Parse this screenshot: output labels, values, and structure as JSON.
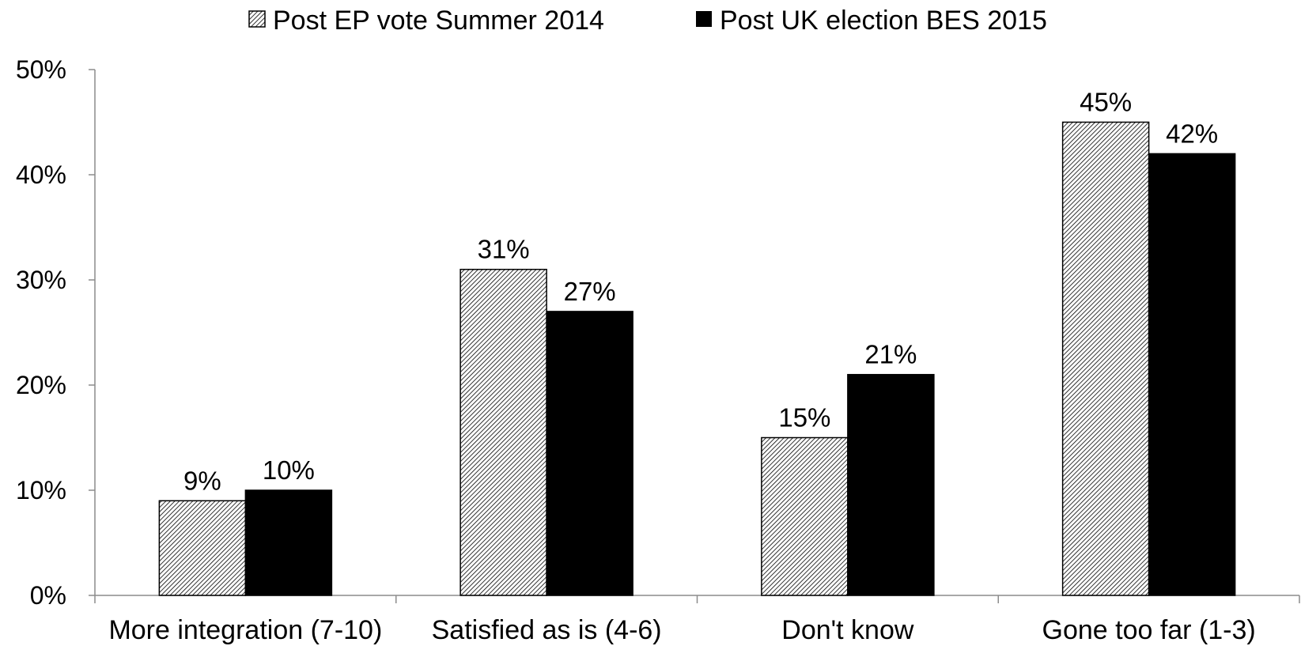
{
  "chart_data": {
    "type": "bar",
    "categories": [
      "More integration (7-10)",
      "Satisfied as is (4-6)",
      "Don't know",
      "Gone too far (1-3)"
    ],
    "series": [
      {
        "name": "Post EP vote Summer 2014",
        "values": [
          9,
          31,
          15,
          45
        ],
        "labels": [
          "9%",
          "31%",
          "15%",
          "45%"
        ],
        "fill": "hatched"
      },
      {
        "name": "Post UK election BES 2015",
        "values": [
          10,
          27,
          21,
          42
        ],
        "labels": [
          "10%",
          "27%",
          "21%",
          "42%"
        ],
        "fill": "solid"
      }
    ],
    "ylim": [
      0,
      50
    ],
    "yticks": [
      0,
      10,
      20,
      30,
      40,
      50
    ],
    "ytick_labels": [
      "0%",
      "10%",
      "20%",
      "30%",
      "40%",
      "50%"
    ],
    "grid": false,
    "legend_position": "top-center",
    "colors": {
      "hatch_series": "#000000",
      "solid_series": "#000000",
      "axis": "#8c8c8c",
      "background": "#ffffff"
    }
  }
}
